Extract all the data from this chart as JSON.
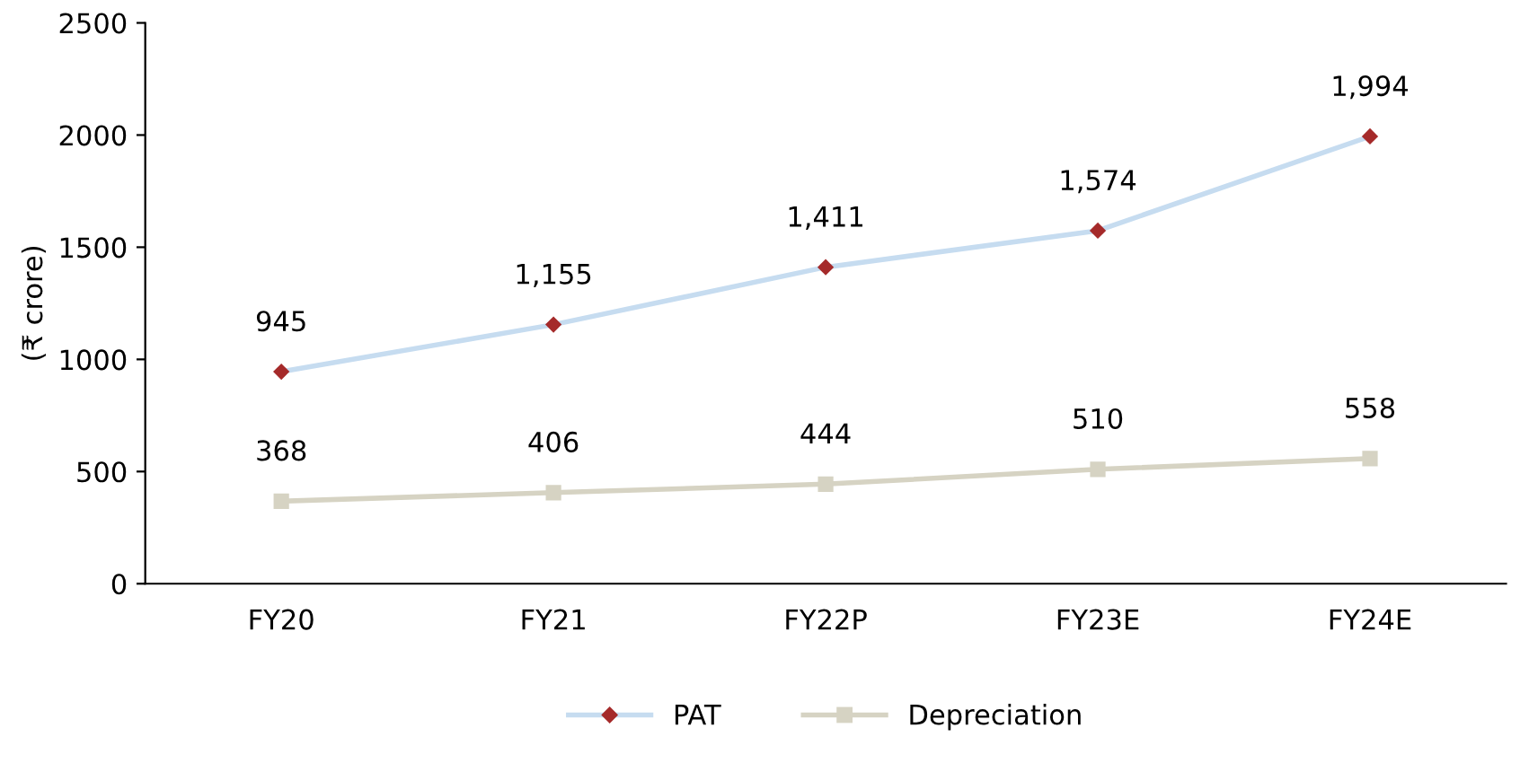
{
  "chart_data": {
    "type": "line",
    "ylabel": "(₹ crore)",
    "categories": [
      "FY20",
      "FY21",
      "FY22P",
      "FY23E",
      "FY24E"
    ],
    "series": [
      {
        "name": "PAT",
        "color": "#c6dcf0",
        "colors": [
          "#a52a2a",
          "#a52a2a",
          "#a52a2a",
          "#a52a2a",
          "#a52a2a"
        ],
        "marker": "diamond",
        "values": [
          945,
          1155,
          1411,
          1574,
          1994
        ],
        "value_labels": [
          "945",
          "1,155",
          "1,411",
          "1,574",
          "1,994"
        ]
      },
      {
        "name": "Depreciation",
        "color": "#d6d3c3",
        "colors": [
          "#d6d3c3",
          "#d6d3c3",
          "#d6d3c3",
          "#d6d3c3",
          "#d6d3c3"
        ],
        "marker": "square",
        "values": [
          368,
          406,
          444,
          510,
          558
        ],
        "value_labels": [
          "368",
          "406",
          "444",
          "510",
          "558"
        ]
      }
    ],
    "ylim": [
      0,
      2500
    ],
    "yticks": [
      0,
      500,
      1000,
      1500,
      2000,
      2500
    ],
    "grid": false,
    "legend": "bottom",
    "line_style": "solid"
  }
}
